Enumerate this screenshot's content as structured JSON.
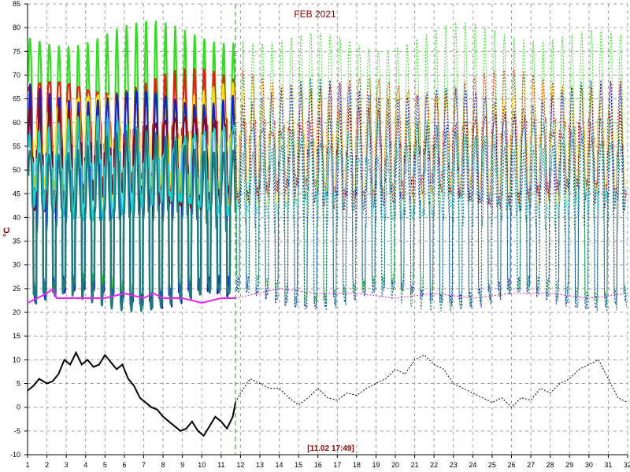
{
  "chart_data": {
    "type": "line",
    "title": "FEB 2021",
    "ylabel": "°C",
    "cursor_label": "[11.02 17:49]",
    "x_ticks": [
      "1",
      "2",
      "3",
      "4",
      "5",
      "6",
      "7",
      "8",
      "9",
      "10",
      "11",
      "12",
      "13",
      "14",
      "15",
      "16",
      "17",
      "18",
      "19",
      "20",
      "21",
      "22",
      "23",
      "24",
      "25",
      "26",
      "27",
      "28",
      "29",
      "30",
      "31",
      "32"
    ],
    "y_ticks": [
      "85",
      "80",
      "75",
      "70",
      "65",
      "60",
      "55",
      "50",
      "45",
      "40",
      "35",
      "30",
      "25",
      "20",
      "15",
      "10",
      "5",
      "0",
      "-5",
      "-10"
    ],
    "xlim": [
      1,
      32
    ],
    "ylim": [
      -10,
      85
    ],
    "cursor_x": 11.74,
    "grid": true,
    "colors": {
      "title": "#8b0000",
      "grid": "#a0a0a0",
      "cursor": "#2e8b2e",
      "green": "#33dd22",
      "red": "#dd2211",
      "yellow": "#ffdd00",
      "blue": "#1122cc",
      "darkred": "#7a0a2a",
      "cyan": "#22cccc",
      "teal": "#1f7a7a",
      "magenta": "#ee22ee",
      "black": "#000000",
      "olive": "#779922"
    },
    "series": [
      {
        "color_key": "black",
        "kind": "outdoor",
        "x": [
          1,
          1.3,
          1.6,
          2,
          2.3,
          2.6,
          2.9,
          3.2,
          3.5,
          3.8,
          4.1,
          4.4,
          4.7,
          5,
          5.3,
          5.6,
          5.9,
          6.2,
          6.5,
          6.8,
          7.1,
          7.4,
          7.7,
          8,
          8.3,
          8.6,
          8.9,
          9.2,
          9.5,
          9.8,
          10.1,
          10.4,
          10.7,
          11,
          11.3,
          11.6,
          11.74
        ],
        "y": [
          3.5,
          4.5,
          6,
          5,
          5.5,
          7,
          10,
          9,
          11.5,
          9,
          10,
          8.5,
          9,
          11,
          9.5,
          8,
          9,
          6,
          4.5,
          2,
          1,
          0,
          -0.5,
          -2,
          -3,
          -4,
          -5,
          -4.5,
          -3,
          -5,
          -6,
          -4,
          -2,
          -3,
          -4.5,
          -2,
          1
        ]
      },
      {
        "color_key": "black",
        "kind": "outdoor-dashed",
        "x": [
          11.74,
          12,
          12.5,
          13,
          13.5,
          14,
          14.5,
          15,
          15.5,
          16,
          16.5,
          17,
          17.5,
          18,
          18.5,
          19,
          19.5,
          20,
          20.5,
          21,
          21.5,
          22,
          22.5,
          23,
          23.5,
          24,
          24.5,
          25,
          25.5,
          26,
          26.5,
          27,
          27.5,
          28,
          28.5,
          29,
          29.5,
          30,
          30.5,
          31,
          31.5,
          32
        ],
        "y": [
          1,
          3,
          6,
          5,
          4,
          4,
          2,
          0.5,
          2,
          4,
          2,
          1.5,
          3,
          2.5,
          4,
          5,
          6,
          8,
          7,
          10,
          11,
          9,
          8,
          5,
          4,
          3,
          2,
          1,
          2,
          0,
          2,
          1.5,
          4,
          3,
          5,
          6,
          8,
          9,
          10,
          6,
          2,
          1
        ]
      },
      {
        "color_key": "magenta",
        "kind": "floor",
        "x": [
          1,
          2,
          2.3,
          2.5,
          3,
          4,
          5,
          6,
          7,
          7.5,
          8,
          9,
          10,
          11,
          11.74
        ],
        "y": [
          22,
          24,
          25,
          23,
          23,
          23,
          23,
          24,
          23,
          24,
          23,
          23,
          22,
          23,
          23
        ]
      },
      {
        "color_key": "magenta",
        "kind": "floor-dashed",
        "x": [
          11.74,
          14,
          16,
          18,
          20,
          22,
          24,
          26,
          28,
          30,
          32
        ],
        "y": [
          23,
          25,
          24,
          24,
          23,
          24,
          23,
          24,
          24,
          23,
          24
        ]
      }
    ],
    "cycles": {
      "period_days": 0.5,
      "solid_until": 11.74,
      "base_temp": 22,
      "series": [
        {
          "color_key": "green",
          "peak": 78,
          "trough": 22
        },
        {
          "color_key": "red",
          "peak": 68,
          "trough": 45
        },
        {
          "color_key": "yellow",
          "peak": 65,
          "trough": 45
        },
        {
          "color_key": "blue",
          "peak": 66,
          "trough": 22
        },
        {
          "color_key": "darkred",
          "peak": 60,
          "trough": 44
        },
        {
          "color_key": "cyan",
          "peak": 58,
          "trough": 42
        },
        {
          "color_key": "teal",
          "peak": 55,
          "trough": 22
        }
      ]
    }
  }
}
